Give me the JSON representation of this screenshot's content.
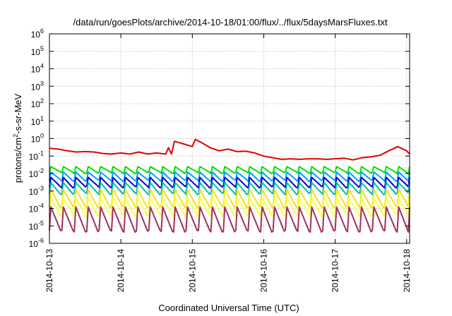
{
  "chart_data": {
    "type": "line",
    "title": "/data/run/goesPlots/archive/2014-10-18/01:00/flux/../flux/5daysMarsFluxes.txt",
    "xlabel": "Coordinated Universal Time (UTC)",
    "ylabel": "protons/cm2-s-sr-MeV",
    "ylabel_parts": {
      "pre": "protons/cm",
      "sup": "2",
      "post": "-s-sr-MeV"
    },
    "y_scale": "log",
    "ylim": [
      1e-06,
      1000000.0
    ],
    "y_ticks": [
      {
        "base": "10",
        "exp": "-6",
        "value": 1e-06
      },
      {
        "base": "10",
        "exp": "-5",
        "value": 1e-05
      },
      {
        "base": "10",
        "exp": "-4",
        "value": 0.0001
      },
      {
        "base": "10",
        "exp": "-3",
        "value": 0.001
      },
      {
        "base": "10",
        "exp": "-2",
        "value": 0.01
      },
      {
        "base": "10",
        "exp": "-1",
        "value": 0.1
      },
      {
        "base": "10",
        "exp": "0",
        "value": 1
      },
      {
        "base": "10",
        "exp": "1",
        "value": 10
      },
      {
        "base": "10",
        "exp": "2",
        "value": 100
      },
      {
        "base": "10",
        "exp": "3",
        "value": 1000
      },
      {
        "base": "10",
        "exp": "4",
        "value": 10000
      },
      {
        "base": "10",
        "exp": "5",
        "value": 100000
      },
      {
        "base": "10",
        "exp": "6",
        "value": 1000000
      }
    ],
    "xlim": [
      "2014-10-13T00:00",
      "2014-10-18T01:00"
    ],
    "x_ticks": [
      "2014-10-13",
      "2014-10-14",
      "2014-10-15",
      "2014-10-16",
      "2014-10-17",
      "2014-10-18"
    ],
    "grid": true,
    "legend": "none",
    "series": [
      {
        "color": "#e00000",
        "pattern": "smooth",
        "x": [
          "2014-10-13T00:00",
          "2014-10-13T03:00",
          "2014-10-13T06:00",
          "2014-10-13T09:00",
          "2014-10-13T12:00",
          "2014-10-13T15:00",
          "2014-10-13T18:00",
          "2014-10-13T21:00",
          "2014-10-14T00:00",
          "2014-10-14T03:00",
          "2014-10-14T06:00",
          "2014-10-14T09:00",
          "2014-10-14T12:00",
          "2014-10-14T15:00",
          "2014-10-14T16:00",
          "2014-10-14T17:00",
          "2014-10-14T18:00",
          "2014-10-14T21:00",
          "2014-10-15T00:00",
          "2014-10-15T01:00",
          "2014-10-15T03:00",
          "2014-10-15T06:00",
          "2014-10-15T09:00",
          "2014-10-15T12:00",
          "2014-10-15T15:00",
          "2014-10-15T18:00",
          "2014-10-15T21:00",
          "2014-10-16T00:00",
          "2014-10-16T03:00",
          "2014-10-16T06:00",
          "2014-10-16T09:00",
          "2014-10-16T12:00",
          "2014-10-16T15:00",
          "2014-10-16T18:00",
          "2014-10-16T21:00",
          "2014-10-17T00:00",
          "2014-10-17T03:00",
          "2014-10-17T06:00",
          "2014-10-17T09:00",
          "2014-10-17T12:00",
          "2014-10-17T15:00",
          "2014-10-17T18:00",
          "2014-10-17T21:00",
          "2014-10-18T00:00",
          "2014-10-18T01:00"
        ],
        "y": [
          0.28,
          0.25,
          0.2,
          0.17,
          0.18,
          0.17,
          0.14,
          0.13,
          0.15,
          0.13,
          0.17,
          0.13,
          0.15,
          0.13,
          0.3,
          0.13,
          0.7,
          0.5,
          0.35,
          0.9,
          0.6,
          0.3,
          0.2,
          0.25,
          0.18,
          0.19,
          0.15,
          0.1,
          0.08,
          0.065,
          0.07,
          0.065,
          0.07,
          0.07,
          0.065,
          0.07,
          0.075,
          0.06,
          0.08,
          0.09,
          0.11,
          0.2,
          0.35,
          0.2,
          0.13
        ]
      },
      {
        "color": "#00e000",
        "pattern": "sawtooth",
        "peak": 0.025,
        "trough": 0.011,
        "cycles": 29
      },
      {
        "color": "#00a0ff",
        "pattern": "sawtooth",
        "peak": 0.012,
        "trough": 0.004,
        "cycles": 29
      },
      {
        "color": "#0000d0",
        "pattern": "sawtooth",
        "peak": 0.006,
        "trough": 0.0017,
        "cycles": 29
      },
      {
        "color": "#00c0a0",
        "pattern": "sawtooth",
        "peak": 0.003,
        "trough": 0.0007,
        "cycles": 29
      },
      {
        "color": "#f0e020",
        "pattern": "sawtooth",
        "peak": 0.0012,
        "trough": 0.00012,
        "cycles": 29
      },
      {
        "color": "#ffff40",
        "pattern": "sawtooth",
        "peak": 0.0004,
        "trough": 4e-05,
        "cycles": 29
      },
      {
        "color": "#a03060",
        "pattern": "sawtooth",
        "peak": 0.00012,
        "trough": 5e-06,
        "cycles": 29
      }
    ]
  }
}
